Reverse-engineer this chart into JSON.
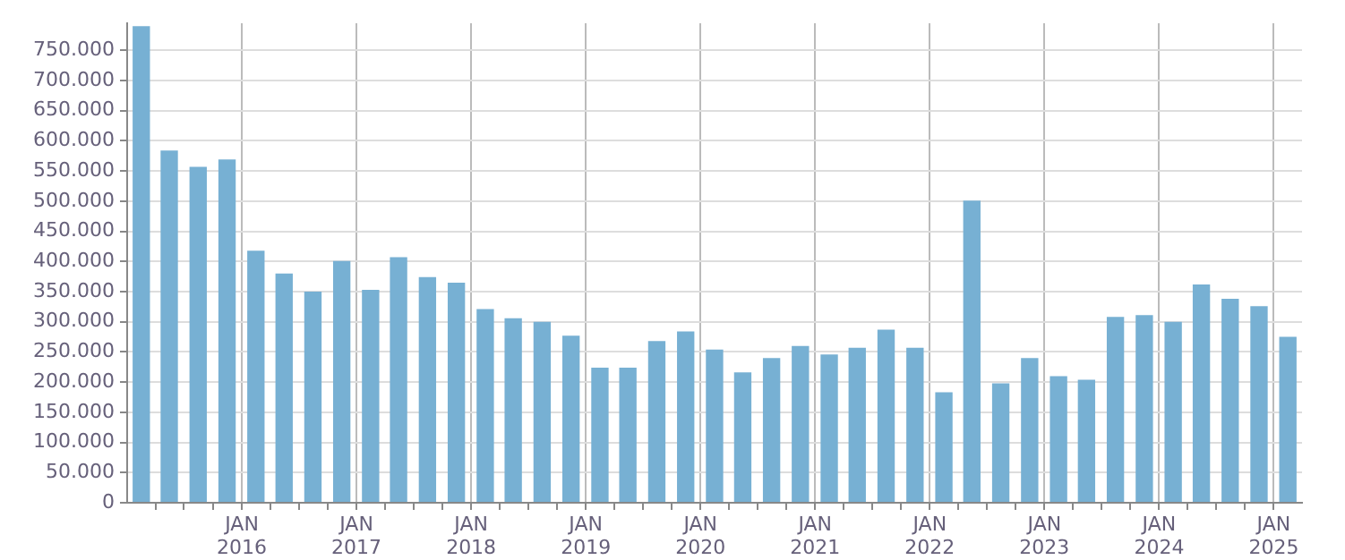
{
  "chart_data": {
    "type": "bar",
    "color": "#77b0d3",
    "x": [
      "2015-02-15",
      "2015-05-15",
      "2015-08-15",
      "2015-11-15",
      "2016-02-15",
      "2016-05-15",
      "2016-08-15",
      "2016-11-15",
      "2017-02-15",
      "2017-05-15",
      "2017-08-15",
      "2017-11-15",
      "2018-02-15",
      "2018-05-15",
      "2018-08-15",
      "2018-11-15",
      "2019-02-15",
      "2019-05-15",
      "2019-08-15",
      "2019-11-15",
      "2020-02-15",
      "2020-05-15",
      "2020-08-15",
      "2020-11-15",
      "2021-02-15",
      "2021-05-15",
      "2021-08-15",
      "2021-11-15",
      "2022-02-15",
      "2022-05-15",
      "2022-08-15",
      "2022-11-15",
      "2023-02-15",
      "2023-05-15",
      "2023-08-15",
      "2023-11-15",
      "2024-02-15",
      "2024-05-15",
      "2024-08-15",
      "2024-11-15",
      "2025-02-15"
    ],
    "values": [
      790000,
      584000,
      557000,
      569000,
      418000,
      380000,
      350000,
      401000,
      353000,
      407000,
      374000,
      365000,
      321000,
      306000,
      300000,
      277000,
      224000,
      224000,
      268000,
      284000,
      254000,
      216000,
      240000,
      260000,
      246000,
      257000,
      287000,
      257000,
      183000,
      501000,
      198000,
      240000,
      210000,
      204000,
      308000,
      311000,
      300000,
      362000,
      338000,
      326000,
      275000
    ],
    "xlim": [
      "2015-01",
      "2025-04"
    ],
    "xticks": [
      {
        "value": "2015-04",
        "label": null
      },
      {
        "value": "2015-07",
        "label": null
      },
      {
        "value": "2015-10",
        "label": null
      },
      {
        "value": "2016-01",
        "label": "JAN 2016"
      },
      {
        "value": "2016-04",
        "label": null
      },
      {
        "value": "2016-07",
        "label": null
      },
      {
        "value": "2016-10",
        "label": null
      },
      {
        "value": "2017-01",
        "label": "JAN 2017"
      },
      {
        "value": "2017-04",
        "label": null
      },
      {
        "value": "2017-07",
        "label": null
      },
      {
        "value": "2017-10",
        "label": null
      },
      {
        "value": "2018-01",
        "label": "JAN 2018"
      },
      {
        "value": "2018-04",
        "label": null
      },
      {
        "value": "2018-07",
        "label": null
      },
      {
        "value": "2018-10",
        "label": null
      },
      {
        "value": "2019-01",
        "label": "JAN 2019"
      },
      {
        "value": "2019-04",
        "label": null
      },
      {
        "value": "2019-07",
        "label": null
      },
      {
        "value": "2019-10",
        "label": null
      },
      {
        "value": "2020-01",
        "label": "JAN 2020"
      },
      {
        "value": "2020-04",
        "label": null
      },
      {
        "value": "2020-07",
        "label": null
      },
      {
        "value": "2020-10",
        "label": null
      },
      {
        "value": "2021-01",
        "label": "JAN 2021"
      },
      {
        "value": "2021-04",
        "label": null
      },
      {
        "value": "2021-07",
        "label": null
      },
      {
        "value": "2021-10",
        "label": null
      },
      {
        "value": "2022-01",
        "label": "JAN 2022"
      },
      {
        "value": "2022-04",
        "label": null
      },
      {
        "value": "2022-07",
        "label": null
      },
      {
        "value": "2022-10",
        "label": null
      },
      {
        "value": "2023-01",
        "label": "JAN 2023"
      },
      {
        "value": "2023-04",
        "label": null
      },
      {
        "value": "2023-07",
        "label": null
      },
      {
        "value": "2023-10",
        "label": null
      },
      {
        "value": "2024-01",
        "label": "JAN 2024"
      },
      {
        "value": "2024-04",
        "label": null
      },
      {
        "value": "2024-07",
        "label": null
      },
      {
        "value": "2024-10",
        "label": null
      },
      {
        "value": "2025-01",
        "label": "JAN 2025"
      }
    ],
    "ylim": [
      0,
      795000
    ],
    "yticks": [
      {
        "value": 0,
        "label": "0"
      },
      {
        "value": 50000,
        "label": "50.000"
      },
      {
        "value": 100000,
        "label": "100.000"
      },
      {
        "value": 150000,
        "label": "150.000"
      },
      {
        "value": 200000,
        "label": "200.000"
      },
      {
        "value": 250000,
        "label": "250.000"
      },
      {
        "value": 300000,
        "label": "300.000"
      },
      {
        "value": 350000,
        "label": "350.000"
      },
      {
        "value": 400000,
        "label": "400.000"
      },
      {
        "value": 450000,
        "label": "450.000"
      },
      {
        "value": 500000,
        "label": "500.000"
      },
      {
        "value": 550000,
        "label": "550.000"
      },
      {
        "value": 600000,
        "label": "600.000"
      },
      {
        "value": 650000,
        "label": "650.000"
      },
      {
        "value": 700000,
        "label": "700.000"
      },
      {
        "value": 750000,
        "label": "750.000"
      }
    ],
    "grid": true,
    "legend": false
  }
}
